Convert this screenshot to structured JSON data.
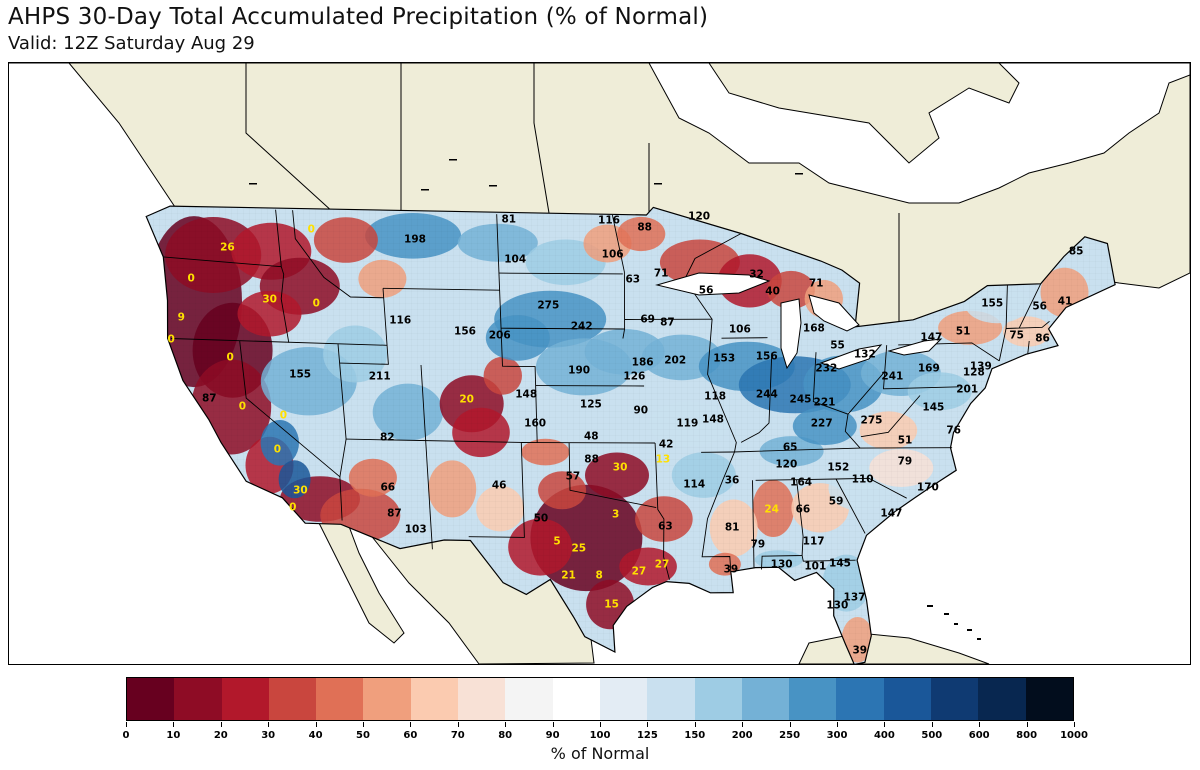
{
  "title": "AHPS 30-Day Total Accumulated Precipitation (% of Normal)",
  "subtitle": "Valid: 12Z Saturday Aug 29",
  "colors": {
    "land_outside": "#efedd8",
    "water": "#ffffff",
    "dry_label": "#ffe000",
    "wet_label": "#000000"
  },
  "map_labels": [
    {
      "text": "81",
      "type": "wet",
      "lon": -103.3,
      "lat": 48.7
    },
    {
      "text": "116",
      "type": "wet",
      "lon": -97.4,
      "lat": 48.7
    },
    {
      "text": "88",
      "type": "wet",
      "lon": -95.3,
      "lat": 48.3
    },
    {
      "text": "120",
      "type": "wet",
      "lon": -92.1,
      "lat": 48.9
    },
    {
      "text": "198",
      "type": "wet",
      "lon": -108.9,
      "lat": 47.6
    },
    {
      "text": "104",
      "type": "wet",
      "lon": -103.0,
      "lat": 46.6
    },
    {
      "text": "106",
      "type": "wet",
      "lon": -97.2,
      "lat": 46.9
    },
    {
      "text": "71",
      "type": "wet",
      "lon": -94.3,
      "lat": 45.9
    },
    {
      "text": "63",
      "type": "wet",
      "lon": -96.0,
      "lat": 45.6
    },
    {
      "text": "56",
      "type": "wet",
      "lon": -91.6,
      "lat": 45.0
    },
    {
      "text": "32",
      "type": "wet",
      "lon": -88.6,
      "lat": 45.8
    },
    {
      "text": "40",
      "type": "wet",
      "lon": -87.6,
      "lat": 44.9
    },
    {
      "text": "71",
      "type": "wet",
      "lon": -85.0,
      "lat": 45.3
    },
    {
      "text": "85",
      "type": "wet",
      "lon": -69.6,
      "lat": 46.6
    },
    {
      "text": "155",
      "type": "wet",
      "lon": -74.3,
      "lat": 44.0
    },
    {
      "text": "56",
      "type": "wet",
      "lon": -71.4,
      "lat": 43.8
    },
    {
      "text": "41",
      "type": "wet",
      "lon": -69.9,
      "lat": 44.0
    },
    {
      "text": "51",
      "type": "wet",
      "lon": -75.9,
      "lat": 42.6
    },
    {
      "text": "75",
      "type": "wet",
      "lon": -72.6,
      "lat": 42.3
    },
    {
      "text": "86",
      "type": "wet",
      "lon": -71.0,
      "lat": 42.1
    },
    {
      "text": "147",
      "type": "wet",
      "lon": -77.8,
      "lat": 42.3
    },
    {
      "text": "275",
      "type": "wet",
      "lon": -101.1,
      "lat": 44.2
    },
    {
      "text": "242",
      "type": "wet",
      "lon": -99.1,
      "lat": 43.1
    },
    {
      "text": "69",
      "type": "wet",
      "lon": -95.1,
      "lat": 43.5
    },
    {
      "text": "87",
      "type": "wet",
      "lon": -93.9,
      "lat": 43.3
    },
    {
      "text": "106",
      "type": "wet",
      "lon": -89.5,
      "lat": 42.9
    },
    {
      "text": "168",
      "type": "wet",
      "lon": -85.0,
      "lat": 42.9
    },
    {
      "text": "55",
      "type": "wet",
      "lon": -83.5,
      "lat": 42.0
    },
    {
      "text": "132",
      "type": "wet",
      "lon": -81.8,
      "lat": 41.5
    },
    {
      "text": "116",
      "type": "wet",
      "lon": -110.1,
      "lat": 43.3
    },
    {
      "text": "156",
      "type": "wet",
      "lon": -106.2,
      "lat": 42.8
    },
    {
      "text": "206",
      "type": "wet",
      "lon": -104.1,
      "lat": 42.6
    },
    {
      "text": "190",
      "type": "wet",
      "lon": -99.3,
      "lat": 40.8
    },
    {
      "text": "186",
      "type": "wet",
      "lon": -95.4,
      "lat": 41.2
    },
    {
      "text": "202",
      "type": "wet",
      "lon": -93.4,
      "lat": 41.3
    },
    {
      "text": "153",
      "type": "wet",
      "lon": -90.4,
      "lat": 41.4
    },
    {
      "text": "156",
      "type": "wet",
      "lon": -87.8,
      "lat": 41.5
    },
    {
      "text": "232",
      "type": "wet",
      "lon": -84.1,
      "lat": 40.8
    },
    {
      "text": "241",
      "type": "wet",
      "lon": -80.0,
      "lat": 40.3
    },
    {
      "text": "169",
      "type": "wet",
      "lon": -77.8,
      "lat": 40.7
    },
    {
      "text": "139",
      "type": "wet",
      "lon": -74.6,
      "lat": 40.7
    },
    {
      "text": "128",
      "type": "wet",
      "lon": -75.0,
      "lat": 40.4
    },
    {
      "text": "201",
      "type": "wet",
      "lon": -75.3,
      "lat": 39.5
    },
    {
      "text": "126",
      "type": "wet",
      "lon": -95.9,
      "lat": 40.5
    },
    {
      "text": "155",
      "type": "wet",
      "lon": -116.5,
      "lat": 40.3
    },
    {
      "text": "211",
      "type": "wet",
      "lon": -111.6,
      "lat": 40.3
    },
    {
      "text": "148",
      "type": "wet",
      "lon": -102.6,
      "lat": 39.5
    },
    {
      "text": "125",
      "type": "wet",
      "lon": -98.6,
      "lat": 39.0
    },
    {
      "text": "90",
      "type": "wet",
      "lon": -95.5,
      "lat": 38.7
    },
    {
      "text": "118",
      "type": "wet",
      "lon": -90.9,
      "lat": 39.4
    },
    {
      "text": "244",
      "type": "wet",
      "lon": -87.7,
      "lat": 39.5
    },
    {
      "text": "245",
      "type": "wet",
      "lon": -85.6,
      "lat": 39.2
    },
    {
      "text": "221",
      "type": "wet",
      "lon": -84.1,
      "lat": 39.0
    },
    {
      "text": "145",
      "type": "wet",
      "lon": -77.3,
      "lat": 38.6
    },
    {
      "text": "87",
      "type": "wet",
      "lon": -122.3,
      "lat": 38.9
    },
    {
      "text": "160",
      "type": "wet",
      "lon": -102.1,
      "lat": 38.0
    },
    {
      "text": "119",
      "type": "wet",
      "lon": -92.6,
      "lat": 38.0
    },
    {
      "text": "148",
      "type": "wet",
      "lon": -91.0,
      "lat": 38.2
    },
    {
      "text": "227",
      "type": "wet",
      "lon": -84.2,
      "lat": 37.9
    },
    {
      "text": "275",
      "type": "wet",
      "lon": -81.1,
      "lat": 38.0
    },
    {
      "text": "76",
      "type": "wet",
      "lon": -75.9,
      "lat": 37.4
    },
    {
      "text": "82",
      "type": "wet",
      "lon": -111.4,
      "lat": 37.1
    },
    {
      "text": "48",
      "type": "wet",
      "lon": -98.6,
      "lat": 37.3
    },
    {
      "text": "42",
      "type": "wet",
      "lon": -93.9,
      "lat": 36.9
    },
    {
      "text": "65",
      "type": "wet",
      "lon": -86.1,
      "lat": 36.7
    },
    {
      "text": "51",
      "type": "wet",
      "lon": -78.9,
      "lat": 36.9
    },
    {
      "text": "88",
      "type": "wet",
      "lon": -98.6,
      "lat": 36.1
    },
    {
      "text": "120",
      "type": "wet",
      "lon": -86.3,
      "lat": 35.8
    },
    {
      "text": "152",
      "type": "wet",
      "lon": -83.0,
      "lat": 35.6
    },
    {
      "text": "79",
      "type": "wet",
      "lon": -78.8,
      "lat": 35.8
    },
    {
      "text": "57",
      "type": "wet",
      "lon": -99.8,
      "lat": 35.2
    },
    {
      "text": "114",
      "type": "wet",
      "lon": -92.1,
      "lat": 34.8
    },
    {
      "text": "36",
      "type": "wet",
      "lon": -89.7,
      "lat": 35.0
    },
    {
      "text": "164",
      "type": "wet",
      "lon": -85.3,
      "lat": 34.8
    },
    {
      "text": "110",
      "type": "wet",
      "lon": -81.4,
      "lat": 34.9
    },
    {
      "text": "170",
      "type": "wet",
      "lon": -77.2,
      "lat": 34.4
    },
    {
      "text": "66",
      "type": "wet",
      "lon": -111.6,
      "lat": 34.5
    },
    {
      "text": "46",
      "type": "wet",
      "lon": -104.5,
      "lat": 34.7
    },
    {
      "text": "87",
      "type": "wet",
      "lon": -111.3,
      "lat": 33.1
    },
    {
      "text": "50",
      "type": "wet",
      "lon": -101.9,
      "lat": 33.0
    },
    {
      "text": "63",
      "type": "wet",
      "lon": -93.9,
      "lat": 32.6
    },
    {
      "text": "81",
      "type": "wet",
      "lon": -89.6,
      "lat": 32.5
    },
    {
      "text": "66",
      "type": "wet",
      "lon": -85.1,
      "lat": 33.4
    },
    {
      "text": "59",
      "type": "wet",
      "lon": -83.0,
      "lat": 33.8
    },
    {
      "text": "147",
      "type": "wet",
      "lon": -79.4,
      "lat": 33.1
    },
    {
      "text": "103",
      "type": "wet",
      "lon": -110.0,
      "lat": 32.3
    },
    {
      "text": "79",
      "type": "wet",
      "lon": -87.9,
      "lat": 31.6
    },
    {
      "text": "117",
      "type": "wet",
      "lon": -84.3,
      "lat": 31.7
    },
    {
      "text": "130",
      "type": "wet",
      "lon": -86.3,
      "lat": 30.5
    },
    {
      "text": "101",
      "type": "wet",
      "lon": -84.1,
      "lat": 30.4
    },
    {
      "text": "145",
      "type": "wet",
      "lon": -82.5,
      "lat": 30.5
    },
    {
      "text": "39",
      "type": "wet",
      "lon": -89.6,
      "lat": 30.3
    },
    {
      "text": "137",
      "type": "wet",
      "lon": -81.4,
      "lat": 28.7
    },
    {
      "text": "130",
      "type": "wet",
      "lon": -82.5,
      "lat": 28.3
    },
    {
      "text": "39",
      "type": "wet",
      "lon": -80.8,
      "lat": 25.9
    },
    {
      "text": "0",
      "type": "dry",
      "lon": -115.0,
      "lat": 48.0
    },
    {
      "text": "26",
      "type": "dry",
      "lon": -120.1,
      "lat": 46.9
    },
    {
      "text": "0",
      "type": "dry",
      "lon": -122.5,
      "lat": 45.2
    },
    {
      "text": "30",
      "type": "dry",
      "lon": -117.9,
      "lat": 44.2
    },
    {
      "text": "0",
      "type": "dry",
      "lon": -115.1,
      "lat": 44.1
    },
    {
      "text": "9",
      "type": "dry",
      "lon": -123.4,
      "lat": 43.1
    },
    {
      "text": "0",
      "type": "dry",
      "lon": -124.2,
      "lat": 41.9
    },
    {
      "text": "0",
      "type": "dry",
      "lon": -120.7,
      "lat": 41.1
    },
    {
      "text": "20",
      "type": "dry",
      "lon": -106.3,
      "lat": 39.2
    },
    {
      "text": "0",
      "type": "dry",
      "lon": -120.3,
      "lat": 38.5
    },
    {
      "text": "0",
      "type": "dry",
      "lon": -117.8,
      "lat": 38.1
    },
    {
      "text": "0",
      "type": "dry",
      "lon": -118.4,
      "lat": 36.3
    },
    {
      "text": "30",
      "type": "dry",
      "lon": -117.2,
      "lat": 34.2
    },
    {
      "text": "0",
      "type": "dry",
      "lon": -117.8,
      "lat": 33.3
    },
    {
      "text": "30",
      "type": "dry",
      "lon": -96.8,
      "lat": 35.7
    },
    {
      "text": "13",
      "type": "dry",
      "lon": -94.1,
      "lat": 36.1
    },
    {
      "text": "24",
      "type": "dry",
      "lon": -87.1,
      "lat": 33.4
    },
    {
      "text": "3",
      "type": "dry",
      "lon": -97.1,
      "lat": 33.2
    },
    {
      "text": "5",
      "type": "dry",
      "lon": -100.9,
      "lat": 31.8
    },
    {
      "text": "25",
      "type": "dry",
      "lon": -99.5,
      "lat": 31.4
    },
    {
      "text": "27",
      "type": "dry",
      "lon": -94.1,
      "lat": 30.6
    },
    {
      "text": "27",
      "type": "dry",
      "lon": -95.6,
      "lat": 30.2
    },
    {
      "text": "21",
      "type": "dry",
      "lon": -100.2,
      "lat": 30.0
    },
    {
      "text": "8",
      "type": "dry",
      "lon": -98.2,
      "lat": 30.0
    },
    {
      "text": "15",
      "type": "dry",
      "lon": -97.4,
      "lat": 28.5
    }
  ],
  "colorbar": {
    "label": "% of Normal",
    "ticks": [
      "0",
      "10",
      "20",
      "30",
      "40",
      "50",
      "60",
      "70",
      "80",
      "90",
      "100",
      "125",
      "150",
      "200",
      "250",
      "300",
      "400",
      "500",
      "600",
      "800",
      "1000"
    ],
    "colors": [
      "#67001f",
      "#8e0c25",
      "#b2182b",
      "#c9463e",
      "#e07056",
      "#f09f7d",
      "#fbcbb0",
      "#f8e1d6",
      "#f4f4f4",
      "#ffffff",
      "#e3ecf4",
      "#c9e0ef",
      "#9ecce4",
      "#74b1d6",
      "#4893c4",
      "#2c75b3",
      "#1a5799",
      "#0f3a72",
      "#082750",
      "#020d1d"
    ]
  }
}
